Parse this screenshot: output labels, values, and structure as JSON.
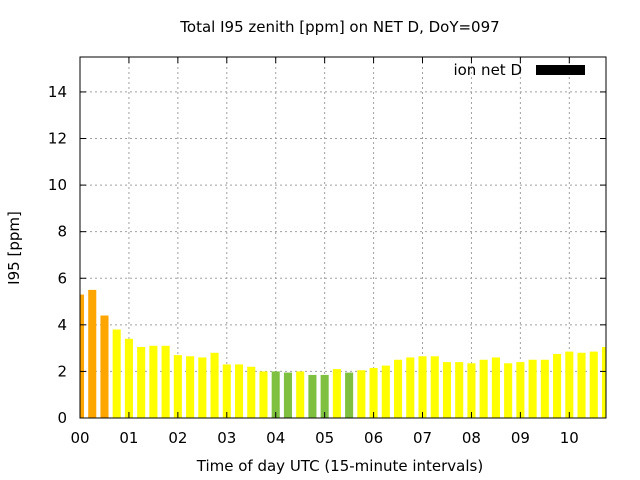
{
  "chart_data": {
    "type": "bar",
    "title": "Total I95 zenith [ppm] on NET D, DoY=097",
    "xlabel": "Time of day UTC (15-minute intervals)",
    "ylabel": "I95 [ppm]",
    "ylim": [
      0,
      15.5
    ],
    "xlim_hours": [
      0,
      10.75
    ],
    "bar_interval_hours": 0.25,
    "yticks": [
      "0",
      "2",
      "4",
      "6",
      "8",
      "10",
      "12",
      "14"
    ],
    "xticks": [
      "00",
      "01",
      "02",
      "03",
      "04",
      "05",
      "06",
      "07",
      "08",
      "09",
      "10"
    ],
    "grid": true,
    "legend": {
      "position": "top-right",
      "label": "ion net D",
      "color": "#000000"
    },
    "colors": {
      "orange": "#ffa500",
      "yellow": "#ffff00",
      "green": "#80c040"
    },
    "values": [
      5.3,
      5.5,
      4.4,
      3.8,
      3.4,
      3.05,
      3.1,
      3.1,
      2.7,
      2.65,
      2.6,
      2.8,
      2.3,
      2.3,
      2.2,
      2.0,
      2.0,
      1.95,
      2.0,
      1.85,
      1.85,
      2.1,
      1.95,
      2.05,
      2.15,
      2.25,
      2.5,
      2.6,
      2.65,
      2.65,
      2.4,
      2.4,
      2.35,
      2.5,
      2.6,
      2.35,
      2.4,
      2.5,
      2.5,
      2.75,
      2.85,
      2.8,
      2.85,
      3.05
    ],
    "bar_colors": [
      "orange",
      "orange",
      "orange",
      "yellow",
      "yellow",
      "yellow",
      "yellow",
      "yellow",
      "yellow",
      "yellow",
      "yellow",
      "yellow",
      "yellow",
      "yellow",
      "yellow",
      "yellow",
      "green",
      "green",
      "yellow",
      "green",
      "green",
      "yellow",
      "green",
      "yellow",
      "yellow",
      "yellow",
      "yellow",
      "yellow",
      "yellow",
      "yellow",
      "yellow",
      "yellow",
      "yellow",
      "yellow",
      "yellow",
      "yellow",
      "yellow",
      "yellow",
      "yellow",
      "yellow",
      "yellow",
      "yellow",
      "yellow",
      "yellow"
    ]
  }
}
